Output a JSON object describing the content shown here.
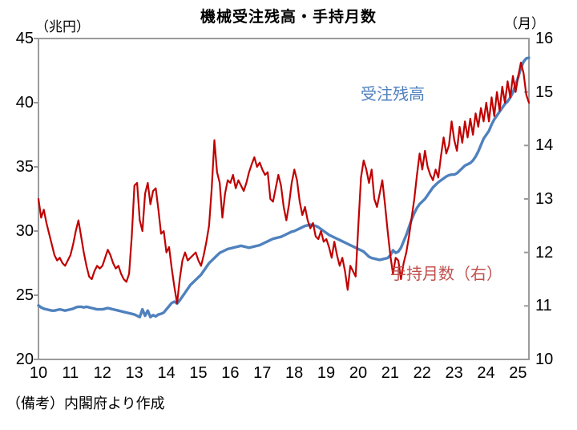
{
  "title": "機械受注残高・手持月数",
  "note": "（備考）内閣府より作成",
  "legend": {
    "backlog_label": "受注残高",
    "months_label": "手持月数（右）"
  },
  "colors": {
    "axis": "#9b9b9b",
    "backlog_line": "#4f81bd",
    "months_line": "#c00000",
    "months_label_text": "#c0504d",
    "text": "#000000",
    "background": "#ffffff"
  },
  "chart_data": {
    "type": "line",
    "title": "機械受注残高・手持月数",
    "grid": false,
    "legend_position": "inline-annotations",
    "x": {
      "start_year": 2010,
      "interval": "monthly",
      "tick_labels": [
        "10",
        "11",
        "12",
        "13",
        "14",
        "15",
        "16",
        "17",
        "18",
        "19",
        "20",
        "21",
        "22",
        "23",
        "24",
        "25"
      ]
    },
    "left_axis": {
      "unit_label": "（兆円）",
      "min": 20,
      "max": 45,
      "ticks": [
        45,
        40,
        35,
        30,
        25,
        20
      ]
    },
    "right_axis": {
      "unit_label": "（月）",
      "min": 10,
      "max": 16,
      "ticks": [
        16,
        15,
        14,
        13,
        12,
        11,
        10
      ]
    },
    "series": [
      {
        "name": "受注残高",
        "axis": "left",
        "color": "#4f81bd",
        "line_width": 3.4,
        "values": [
          24.2,
          24.05,
          23.95,
          23.9,
          23.85,
          23.8,
          23.8,
          23.85,
          23.9,
          23.85,
          23.8,
          23.85,
          23.9,
          23.95,
          24.05,
          24.1,
          24.1,
          24.05,
          24.1,
          24.05,
          24.0,
          23.95,
          23.9,
          23.9,
          23.9,
          23.95,
          24.0,
          23.95,
          23.9,
          23.85,
          23.8,
          23.75,
          23.7,
          23.65,
          23.6,
          23.55,
          23.5,
          23.4,
          23.3,
          23.9,
          23.4,
          23.8,
          23.3,
          23.45,
          23.35,
          23.5,
          23.55,
          23.65,
          23.9,
          24.15,
          24.4,
          24.5,
          24.35,
          24.6,
          24.9,
          25.2,
          25.5,
          25.8,
          26.0,
          26.2,
          26.4,
          26.6,
          26.9,
          27.2,
          27.5,
          27.7,
          27.9,
          28.1,
          28.3,
          28.4,
          28.5,
          28.6,
          28.65,
          28.7,
          28.75,
          28.8,
          28.85,
          28.8,
          28.75,
          28.7,
          28.75,
          28.8,
          28.85,
          28.9,
          29.0,
          29.1,
          29.2,
          29.3,
          29.4,
          29.45,
          29.5,
          29.55,
          29.65,
          29.75,
          29.85,
          29.95,
          30.0,
          30.1,
          30.2,
          30.3,
          30.4,
          30.45,
          30.5,
          30.45,
          30.4,
          30.3,
          30.15,
          30.0,
          29.85,
          29.7,
          29.6,
          29.5,
          29.4,
          29.3,
          29.2,
          29.1,
          29.0,
          28.9,
          28.8,
          28.7,
          28.6,
          28.5,
          28.4,
          28.2,
          28.0,
          27.9,
          27.85,
          27.8,
          27.75,
          27.8,
          27.85,
          27.9,
          28.1,
          28.5,
          28.3,
          28.4,
          28.7,
          29.2,
          29.7,
          30.3,
          30.9,
          31.4,
          31.8,
          32.1,
          32.3,
          32.5,
          32.8,
          33.1,
          33.4,
          33.6,
          33.8,
          33.95,
          34.1,
          34.25,
          34.35,
          34.4,
          34.4,
          34.5,
          34.7,
          34.9,
          35.1,
          35.2,
          35.3,
          35.5,
          35.8,
          36.2,
          36.7,
          37.2,
          37.5,
          37.8,
          38.3,
          38.7,
          39.0,
          39.3,
          39.6,
          39.9,
          40.1,
          40.4,
          40.8,
          41.4,
          42.0,
          42.7,
          43.2,
          43.45,
          43.5
        ]
      },
      {
        "name": "手持月数（右）",
        "axis": "right",
        "color": "#c00000",
        "line_width": 2.2,
        "values": [
          13.0,
          12.65,
          12.8,
          12.55,
          12.35,
          12.15,
          11.95,
          11.85,
          11.9,
          11.8,
          11.75,
          11.85,
          11.95,
          12.15,
          12.4,
          12.6,
          12.3,
          12.0,
          11.75,
          11.55,
          11.5,
          11.65,
          11.75,
          11.7,
          11.75,
          11.9,
          12.05,
          11.95,
          11.8,
          11.7,
          11.75,
          11.6,
          11.5,
          11.45,
          11.6,
          12.3,
          13.25,
          13.3,
          12.6,
          12.4,
          13.1,
          13.3,
          12.9,
          13.15,
          13.2,
          12.8,
          12.35,
          12.4,
          12.0,
          12.1,
          11.7,
          11.35,
          11.05,
          11.5,
          11.85,
          12.0,
          11.85,
          11.9,
          11.95,
          12.0,
          11.85,
          11.75,
          11.95,
          12.2,
          12.5,
          13.2,
          14.1,
          13.5,
          13.3,
          12.65,
          13.1,
          13.35,
          13.3,
          13.45,
          13.2,
          13.35,
          13.25,
          13.15,
          13.3,
          13.5,
          13.65,
          13.78,
          13.6,
          13.68,
          13.55,
          13.45,
          13.5,
          13.0,
          12.95,
          13.2,
          13.45,
          13.25,
          12.85,
          12.6,
          12.9,
          13.3,
          13.55,
          13.35,
          12.95,
          12.7,
          12.85,
          12.6,
          12.45,
          12.55,
          12.3,
          12.25,
          12.4,
          12.2,
          12.25,
          12.1,
          11.9,
          12.2,
          11.95,
          11.75,
          11.9,
          11.65,
          11.3,
          11.75,
          11.65,
          11.55,
          12.5,
          13.4,
          13.72,
          13.55,
          13.3,
          13.55,
          13.0,
          12.85,
          13.1,
          13.35,
          12.9,
          12.4,
          11.95,
          11.6,
          11.9,
          11.85,
          11.5,
          11.8,
          12.0,
          12.3,
          12.65,
          13.0,
          13.45,
          13.85,
          13.55,
          13.9,
          13.6,
          13.45,
          13.35,
          13.55,
          13.4,
          13.8,
          14.15,
          13.85,
          14.0,
          14.45,
          14.1,
          13.9,
          14.35,
          14.05,
          14.45,
          14.15,
          14.5,
          14.2,
          14.6,
          14.35,
          14.7,
          14.45,
          14.8,
          14.45,
          14.9,
          14.55,
          15.0,
          14.65,
          15.1,
          14.8,
          15.2,
          14.9,
          15.3,
          15.0,
          15.3,
          15.55,
          15.35,
          14.95,
          14.8
        ]
      }
    ]
  }
}
